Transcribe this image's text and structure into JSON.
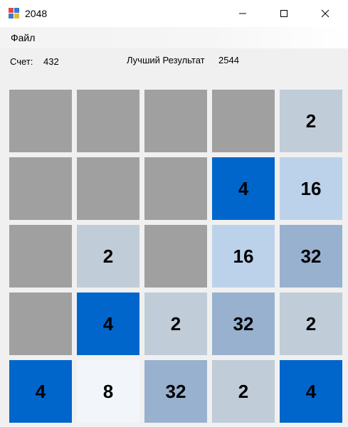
{
  "window": {
    "title": "2048",
    "minimize_glyph": "—",
    "maximize_glyph": "☐",
    "close_glyph": "✕"
  },
  "menu": {
    "file_label": "Файл"
  },
  "score": {
    "label": "Счет:",
    "value": "432"
  },
  "best": {
    "label": "Лучший Результат",
    "value": "2544"
  },
  "colors": {
    "empty": "#a0a0a0",
    "2": "#c0ccd8",
    "4": "#0066cc",
    "8": "#f2f6fb",
    "16": "#bcd2ea",
    "32": "#98b1cf"
  },
  "board": [
    [
      "",
      "",
      "",
      "",
      "2"
    ],
    [
      "",
      "",
      "",
      "4",
      "16"
    ],
    [
      "",
      "2",
      "",
      "16",
      "32"
    ],
    [
      "",
      "4",
      "2",
      "32",
      "2"
    ],
    [
      "4",
      "8",
      "32",
      "2",
      "4"
    ]
  ]
}
